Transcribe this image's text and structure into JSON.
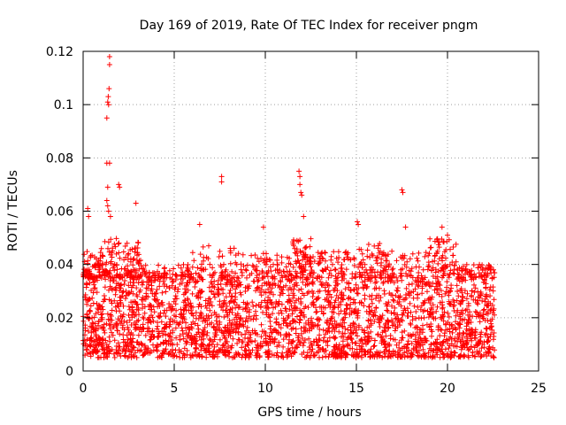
{
  "chart_data": {
    "type": "scatter",
    "title": "Day 169 of 2019, Rate Of TEC Index for receiver pngm",
    "xlabel": "GPS time / hours",
    "ylabel": "ROTI / TECUs",
    "xlim": [
      0,
      25
    ],
    "ylim": [
      0,
      0.12
    ],
    "xticks": [
      0,
      5,
      10,
      15,
      20,
      25
    ],
    "yticks": [
      0,
      0.02,
      0.04,
      0.06,
      0.08,
      0.1,
      0.12
    ],
    "xtick_labels": [
      "0",
      "5",
      "10",
      "15",
      "20",
      "25"
    ],
    "ytick_labels": [
      "0",
      "0.02",
      "0.04",
      "0.06",
      "0.08",
      "0.1",
      "0.12"
    ],
    "grid": true,
    "marker": "+",
    "color": "#ff0000",
    "data_span_hours": [
      0,
      22.6
    ],
    "baseline_band": [
      0.005,
      0.035
    ],
    "outlier_points": [
      {
        "x": 1.45,
        "y": 0.118
      },
      {
        "x": 1.45,
        "y": 0.115
      },
      {
        "x": 1.42,
        "y": 0.106
      },
      {
        "x": 1.38,
        "y": 0.103
      },
      {
        "x": 1.35,
        "y": 0.101
      },
      {
        "x": 1.4,
        "y": 0.1
      },
      {
        "x": 1.3,
        "y": 0.095
      },
      {
        "x": 1.3,
        "y": 0.078
      },
      {
        "x": 1.45,
        "y": 0.078
      },
      {
        "x": 1.35,
        "y": 0.069
      },
      {
        "x": 1.3,
        "y": 0.064
      },
      {
        "x": 1.35,
        "y": 0.062
      },
      {
        "x": 1.4,
        "y": 0.06
      },
      {
        "x": 1.5,
        "y": 0.058
      },
      {
        "x": 1.95,
        "y": 0.07
      },
      {
        "x": 2.0,
        "y": 0.069
      },
      {
        "x": 0.25,
        "y": 0.061
      },
      {
        "x": 0.3,
        "y": 0.058
      },
      {
        "x": 2.9,
        "y": 0.063
      },
      {
        "x": 7.6,
        "y": 0.073
      },
      {
        "x": 7.6,
        "y": 0.071
      },
      {
        "x": 11.85,
        "y": 0.075
      },
      {
        "x": 11.9,
        "y": 0.073
      },
      {
        "x": 11.9,
        "y": 0.07
      },
      {
        "x": 11.95,
        "y": 0.067
      },
      {
        "x": 12.0,
        "y": 0.066
      },
      {
        "x": 17.5,
        "y": 0.068
      },
      {
        "x": 17.55,
        "y": 0.067
      },
      {
        "x": 15.05,
        "y": 0.056
      },
      {
        "x": 15.1,
        "y": 0.055
      },
      {
        "x": 6.4,
        "y": 0.055
      },
      {
        "x": 9.9,
        "y": 0.054
      },
      {
        "x": 12.1,
        "y": 0.058
      },
      {
        "x": 17.7,
        "y": 0.054
      },
      {
        "x": 19.7,
        "y": 0.054
      },
      {
        "x": 20.0,
        "y": 0.051
      }
    ],
    "activity_clusters": [
      {
        "x_from": 0.0,
        "x_to": 1.0,
        "y_max": 0.045
      },
      {
        "x_from": 1.0,
        "x_to": 2.2,
        "y_max": 0.05
      },
      {
        "x_from": 2.2,
        "x_to": 3.2,
        "y_max": 0.049
      },
      {
        "x_from": 3.2,
        "x_to": 6.0,
        "y_max": 0.04
      },
      {
        "x_from": 6.0,
        "x_to": 9.0,
        "y_max": 0.047
      },
      {
        "x_from": 9.0,
        "x_to": 11.5,
        "y_max": 0.045
      },
      {
        "x_from": 11.5,
        "x_to": 12.5,
        "y_max": 0.05
      },
      {
        "x_from": 12.5,
        "x_to": 14.8,
        "y_max": 0.045
      },
      {
        "x_from": 14.8,
        "x_to": 16.5,
        "y_max": 0.048
      },
      {
        "x_from": 16.5,
        "x_to": 19.0,
        "y_max": 0.045
      },
      {
        "x_from": 19.0,
        "x_to": 20.5,
        "y_max": 0.05
      },
      {
        "x_from": 20.5,
        "x_to": 22.6,
        "y_max": 0.04
      }
    ]
  }
}
